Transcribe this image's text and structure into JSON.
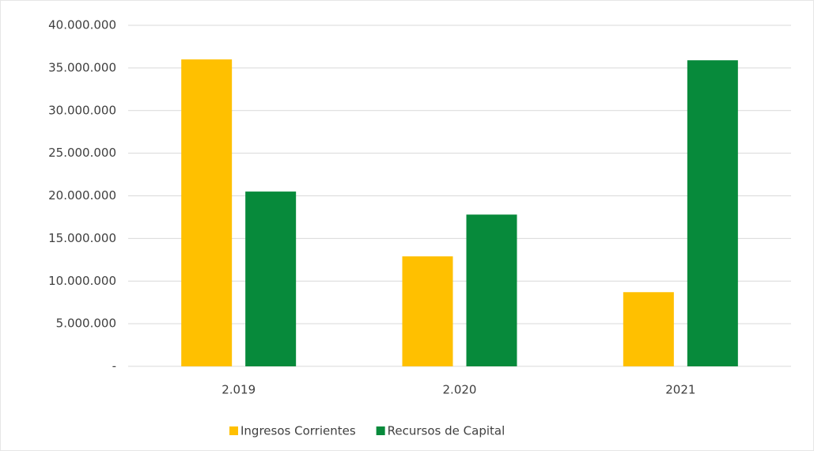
{
  "chart_data": {
    "type": "bar",
    "categories": [
      "2.019",
      "2.020",
      "2021"
    ],
    "series": [
      {
        "name": "Ingresos Corrientes",
        "color": "#ffc000",
        "values": [
          36000000,
          12900000,
          8700000
        ]
      },
      {
        "name": "Recursos de Capital",
        "color": "#078a3b",
        "values": [
          20500000,
          17800000,
          35900000
        ]
      }
    ],
    "ylim": [
      0,
      40000000
    ],
    "yticks": [
      {
        "value": 0,
        "label": "-"
      },
      {
        "value": 5000000,
        "label": "5.000.000"
      },
      {
        "value": 10000000,
        "label": "10.000.000"
      },
      {
        "value": 15000000,
        "label": "15.000.000"
      },
      {
        "value": 20000000,
        "label": "20.000.000"
      },
      {
        "value": 25000000,
        "label": "25.000.000"
      },
      {
        "value": 30000000,
        "label": "30.000.000"
      },
      {
        "value": 35000000,
        "label": "35.000.000"
      },
      {
        "value": 40000000,
        "label": "40.000.000"
      }
    ],
    "grid": true,
    "legend": "bottom"
  }
}
